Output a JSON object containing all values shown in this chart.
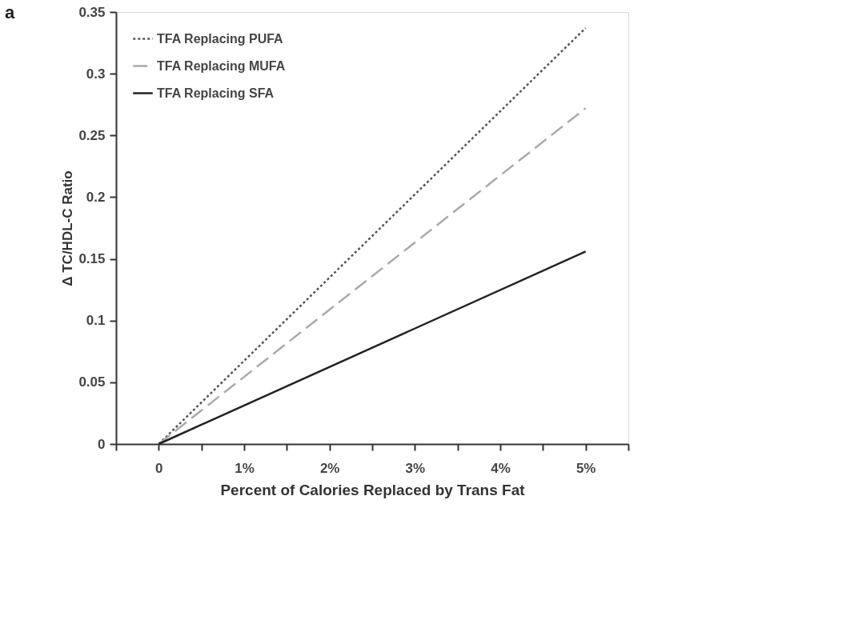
{
  "chart_data": {
    "type": "line",
    "title": "a",
    "xlabel": "Percent of Calories Replaced by Trans Fat",
    "ylabel": "Δ TC/HDL-C Ratio",
    "x": [
      0,
      5
    ],
    "series": [
      {
        "name": "TFA Replacing PUFA",
        "color": "#555555",
        "line_style": "dotted",
        "values": [
          0,
          0.337
        ]
      },
      {
        "name": "TFA Replacing MUFA",
        "color": "#aaaaaa",
        "line_style": "dashed",
        "values": [
          0,
          0.272
        ]
      },
      {
        "name": "TFA Replacing SFA",
        "color": "#222222",
        "line_style": "solid",
        "values": [
          0,
          0.156
        ]
      }
    ],
    "xlim": [
      -0.5,
      5.5
    ],
    "xticks": [
      {
        "value": -0.5,
        "label": null
      },
      0,
      {
        "value": 0.5,
        "label": null
      },
      {
        "value": 1,
        "label": "1%"
      },
      {
        "value": 1.5,
        "label": null
      },
      {
        "value": 2,
        "label": "2%"
      },
      {
        "value": 2.5,
        "label": null
      },
      {
        "value": 3,
        "label": "3%"
      },
      {
        "value": 3.5,
        "label": null
      },
      {
        "value": 4,
        "label": "4%"
      },
      {
        "value": 4.5,
        "label": null
      },
      {
        "value": 5,
        "label": "5%"
      },
      {
        "value": 5.5,
        "label": null
      }
    ],
    "ylim": [
      0,
      0.35
    ],
    "yticks": [
      0,
      0.05,
      0.1,
      0.15,
      0.2,
      0.25,
      0.3,
      0.35
    ],
    "grid": false,
    "legend": "top left",
    "marker": "none"
  }
}
